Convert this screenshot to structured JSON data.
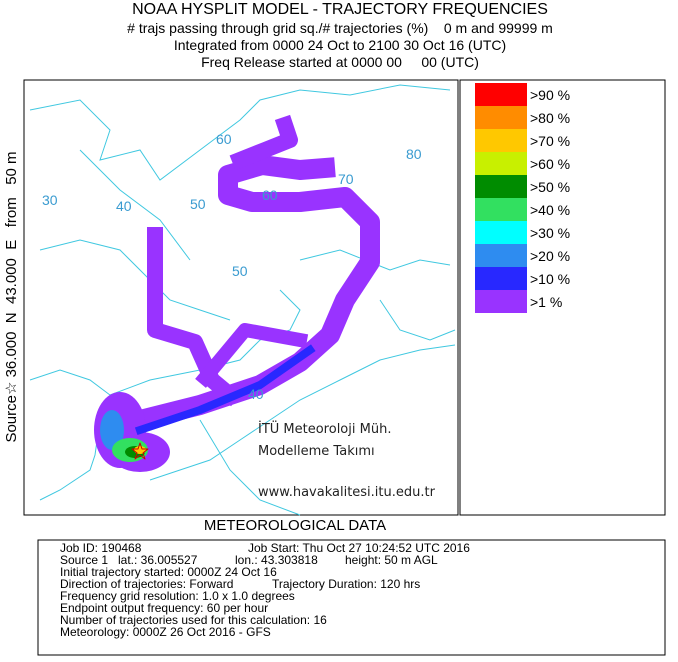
{
  "header": {
    "title": "NOAA HYSPLIT MODEL - TRAJECTORY FREQUENCIES",
    "lines": [
      "# trajs passing through grid sq./# trajectories (%)    0 m and 99999 m",
      "Integrated from 0000 24 Oct to 2100 30 Oct 16 (UTC)",
      "Freq Release started at 0000 00     00 (UTC)"
    ]
  },
  "side_label": "Source☆ 36.000  N  43.000  E   from   50 m",
  "map": {
    "grid_labels": [
      "60",
      "80",
      "30",
      "40",
      "50",
      "60",
      "70",
      "50",
      "40"
    ],
    "watermark": [
      "İTÜ Meteoroloji Müh.",
      "Modelleme Takımı",
      "www.havakalitesi.itu.edu.tr"
    ]
  },
  "legend": {
    "items": [
      {
        "label": ">90 %",
        "color": "#ff0000"
      },
      {
        "label": ">80 %",
        "color": "#ff8c00"
      },
      {
        "label": ">70 %",
        "color": "#ffc800"
      },
      {
        "label": ">60 %",
        "color": "#c8f000"
      },
      {
        "label": ">50 %",
        "color": "#008c00"
      },
      {
        "label": ">40 %",
        "color": "#32e060"
      },
      {
        "label": ">30 %",
        "color": "#00ffff"
      },
      {
        "label": ">20 %",
        "color": "#2e8cf0"
      },
      {
        "label": ">10 %",
        "color": "#2828ff"
      },
      {
        "label": ">1 %",
        "color": "#9933ff"
      }
    ]
  },
  "meteorological": {
    "title": "METEOROLOGICAL DATA",
    "rows": [
      [
        "Job ID: 190468",
        "Job Start: Thu Oct 27 10:24:52 UTC 2016"
      ],
      [
        "Source 1",
        "lat.: 36.005527",
        "lon.: 43.303818",
        "height: 50 m AGL"
      ],
      [
        "Initial trajectory started: 0000Z 24 Oct 16"
      ],
      [
        "Direction of trajectories: Forward",
        "Trajectory Duration: 120 hrs"
      ],
      [
        "Frequency grid resolution: 1.0 x 1.0 degrees"
      ],
      [
        "Endpoint output frequency: 60 per hour"
      ],
      [
        "Number of trajectories used for this calculation: 16"
      ],
      [
        "Meteorology: 0000Z 26 Oct 2016 - GFS"
      ]
    ]
  }
}
